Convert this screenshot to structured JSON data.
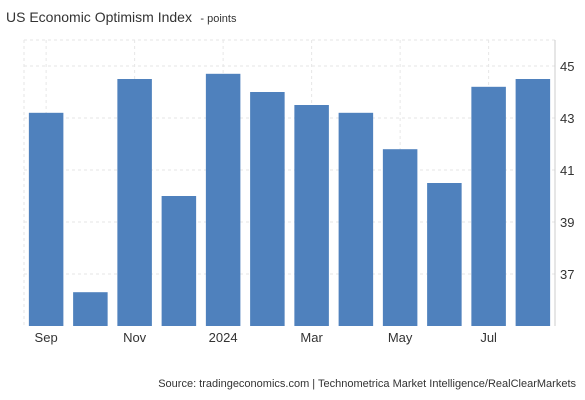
{
  "header": {
    "title": "US Economic Optimism Index",
    "unit": "- points"
  },
  "footer": {
    "source": "Source: tradingeconomics.com | Technometrica Market Intelligence/RealClearMarkets"
  },
  "chart_data": {
    "type": "bar",
    "title": "US Economic Optimism Index",
    "ylabel": "",
    "xlabel": "",
    "ylim": [
      35,
      46
    ],
    "yticks": [
      37,
      39,
      41,
      43,
      45
    ],
    "y_axis_position": "right",
    "grid": true,
    "bar_color": "#4f81bd",
    "categories": [
      "Sep 2023",
      "Oct 2023",
      "Nov 2023",
      "Dec 2023",
      "Jan 2024",
      "Feb 2024",
      "Mar 2024",
      "Apr 2024",
      "May 2024",
      "Jun 2024",
      "Jul 2024",
      "Aug 2024"
    ],
    "values": [
      43.2,
      36.3,
      44.5,
      40.0,
      44.7,
      44.0,
      43.5,
      43.2,
      41.8,
      40.5,
      44.2,
      44.5
    ],
    "xtick_labels": [
      {
        "index": 0,
        "label": "Sep"
      },
      {
        "index": 2,
        "label": "Nov"
      },
      {
        "index": 4,
        "label": "2024"
      },
      {
        "index": 6,
        "label": "Mar"
      },
      {
        "index": 8,
        "label": "May"
      },
      {
        "index": 10,
        "label": "Jul"
      }
    ]
  }
}
